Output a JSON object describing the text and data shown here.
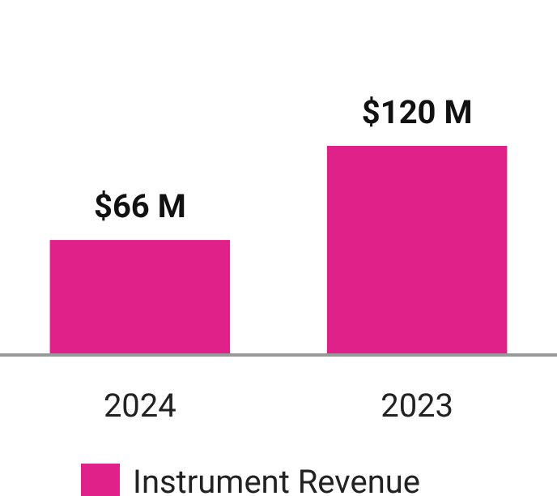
{
  "chart_data": {
    "type": "bar",
    "categories": [
      "2024",
      "2023"
    ],
    "series": [
      {
        "name": "Instrument Revenue",
        "color": "#e0218a",
        "values": [
          66,
          120
        ],
        "value_labels": [
          "$66 M",
          "$120 M"
        ]
      }
    ],
    "legend": "bottom"
  }
}
